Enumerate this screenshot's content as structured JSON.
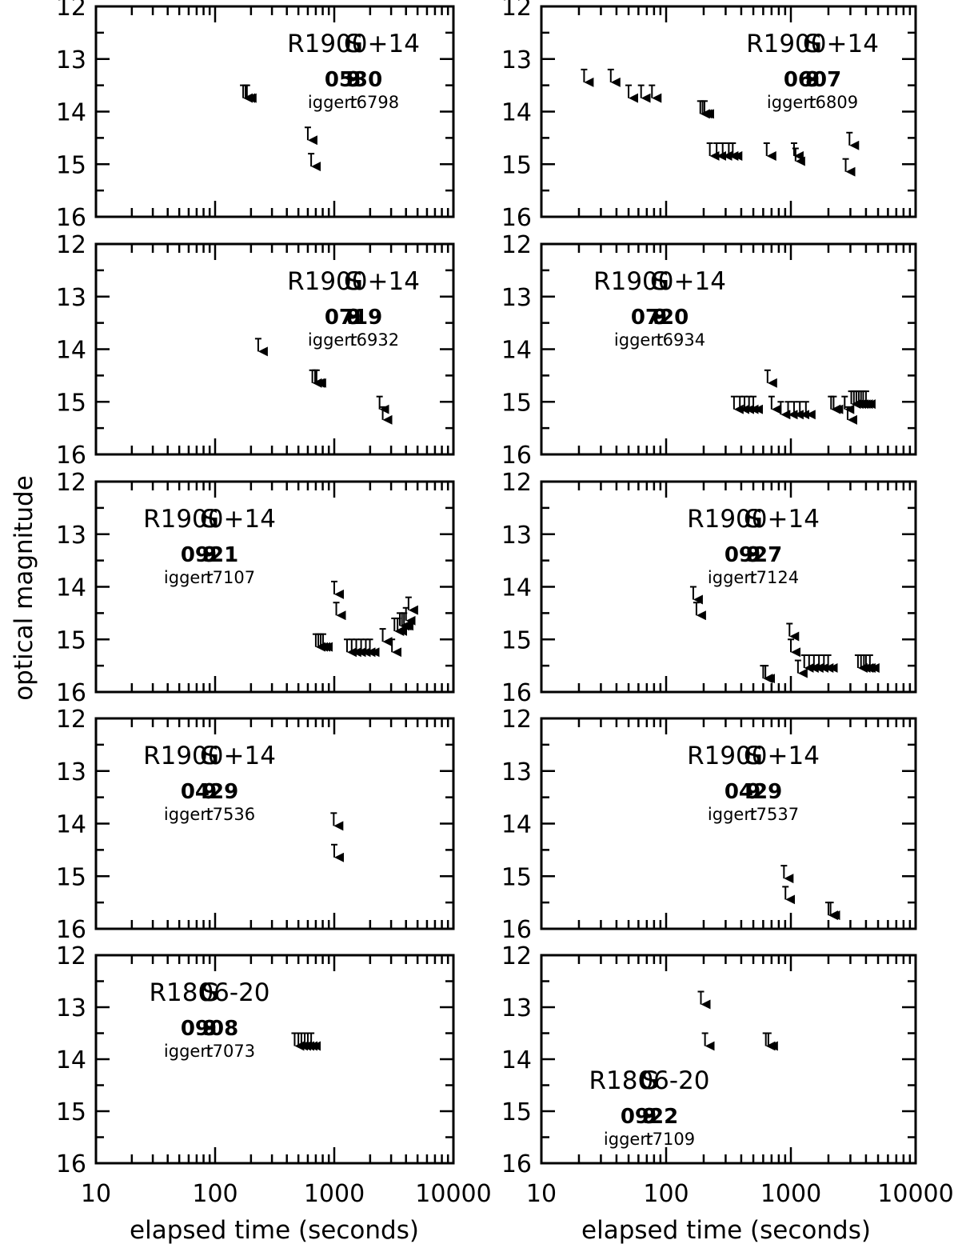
{
  "chart_data": {
    "type": "scatter",
    "marker": "upper-limit-arrow",
    "ylabel": "optical magnitude",
    "xlabel": "elapsed time (seconds)",
    "x_scale": "log",
    "xlim": [
      10,
      10000
    ],
    "ylim": [
      12,
      16
    ],
    "y_inverted": true,
    "x_tick_labels": [
      "10",
      "100",
      "1000",
      "10000"
    ],
    "y_tick_labels": [
      "12",
      "13",
      "14",
      "15",
      "16"
    ],
    "panels": [
      {
        "source": "SGR1900+14",
        "burst": "980530",
        "trigger": "trigger 6798",
        "limits": [
          [
            172,
            13.5
          ],
          [
            180,
            13.5
          ],
          [
            185,
            13.5
          ],
          [
            600,
            14.3
          ],
          [
            640,
            14.8
          ]
        ]
      },
      {
        "source": "SGR1900+14",
        "burst": "980607",
        "trigger": "trigger 6809",
        "limits": [
          [
            22,
            13.2
          ],
          [
            36,
            13.2
          ],
          [
            50,
            13.5
          ],
          [
            63,
            13.5
          ],
          [
            77,
            13.5
          ],
          [
            188,
            13.8
          ],
          [
            196,
            13.8
          ],
          [
            203,
            13.8
          ],
          [
            224,
            14.6
          ],
          [
            254,
            14.6
          ],
          [
            284,
            14.6
          ],
          [
            318,
            14.6
          ],
          [
            342,
            14.6
          ],
          [
            640,
            14.6
          ],
          [
            1060,
            14.6
          ],
          [
            1090,
            14.7
          ],
          [
            2750,
            14.9
          ],
          [
            2950,
            14.4
          ]
        ]
      },
      {
        "source": "SGR1900+14",
        "burst": "980719",
        "trigger": "trigger 6932",
        "limits": [
          [
            230,
            13.8
          ],
          [
            655,
            14.4
          ],
          [
            690,
            14.4
          ],
          [
            710,
            14.4
          ],
          [
            2400,
            14.9
          ],
          [
            2550,
            15.1
          ]
        ]
      },
      {
        "source": "SGR1900+14",
        "burst": "980720",
        "trigger": "trigger 6934",
        "limits": [
          [
            350,
            14.9
          ],
          [
            390,
            14.9
          ],
          [
            425,
            14.9
          ],
          [
            462,
            14.9
          ],
          [
            500,
            14.9
          ],
          [
            650,
            14.4
          ],
          [
            700,
            14.9
          ],
          [
            830,
            15.0
          ],
          [
            950,
            15.0
          ],
          [
            1060,
            15.0
          ],
          [
            1180,
            15.0
          ],
          [
            1320,
            15.0
          ],
          [
            2100,
            14.9
          ],
          [
            2200,
            14.9
          ],
          [
            2700,
            14.9
          ],
          [
            2850,
            15.1
          ],
          [
            3050,
            14.8
          ],
          [
            3200,
            14.8
          ],
          [
            3350,
            14.8
          ],
          [
            3500,
            14.8
          ],
          [
            3650,
            14.8
          ],
          [
            3800,
            14.8
          ],
          [
            4000,
            14.8
          ]
        ]
      },
      {
        "source": "SGR1900+14",
        "burst": "980921",
        "trigger": "trigger 7107",
        "limits": [
          [
            700,
            14.9
          ],
          [
            735,
            14.9
          ],
          [
            770,
            14.9
          ],
          [
            805,
            14.9
          ],
          [
            1000,
            13.9
          ],
          [
            1040,
            14.3
          ],
          [
            1280,
            15.0
          ],
          [
            1400,
            15.0
          ],
          [
            1530,
            15.0
          ],
          [
            1680,
            15.0
          ],
          [
            1840,
            15.0
          ],
          [
            1990,
            15.0
          ],
          [
            2550,
            14.8
          ],
          [
            3050,
            15.0
          ],
          [
            3200,
            14.6
          ],
          [
            3400,
            14.6
          ],
          [
            3550,
            14.5
          ],
          [
            3700,
            14.5
          ],
          [
            3850,
            14.5
          ],
          [
            4000,
            14.4
          ],
          [
            4200,
            14.2
          ]
        ]
      },
      {
        "source": "SGR1900+14",
        "burst": "980927",
        "trigger": "trigger 7124",
        "limits": [
          [
            165,
            14.0
          ],
          [
            175,
            14.3
          ],
          [
            600,
            15.5
          ],
          [
            625,
            15.5
          ],
          [
            975,
            14.7
          ],
          [
            1000,
            15.0
          ],
          [
            1140,
            15.4
          ],
          [
            1280,
            15.3
          ],
          [
            1400,
            15.3
          ],
          [
            1530,
            15.3
          ],
          [
            1680,
            15.3
          ],
          [
            1840,
            15.3
          ],
          [
            1990,
            15.3
          ],
          [
            3450,
            15.3
          ],
          [
            3650,
            15.3
          ],
          [
            3850,
            15.3
          ],
          [
            4000,
            15.3
          ],
          [
            4300,
            15.3
          ]
        ]
      },
      {
        "source": "SGR1900+14",
        "burst": "990429",
        "trigger": "trigger 7536",
        "limits": [
          [
            990,
            13.8
          ],
          [
            1000,
            14.4
          ]
        ]
      },
      {
        "source": "SGR1900+14",
        "burst": "990429",
        "trigger": "trigger 7537",
        "limits": [
          [
            880,
            14.8
          ],
          [
            905,
            15.2
          ],
          [
            2000,
            15.5
          ],
          [
            2080,
            15.5
          ]
        ]
      },
      {
        "source": "SGR1806-20",
        "burst": "980908",
        "trigger": "trigger 7073",
        "limits": [
          [
            465,
            13.5
          ],
          [
            500,
            13.5
          ],
          [
            530,
            13.5
          ],
          [
            565,
            13.5
          ],
          [
            600,
            13.5
          ],
          [
            640,
            13.5
          ]
        ]
      },
      {
        "source": "SGR1806-20",
        "burst": "980922",
        "trigger": "trigger 7109",
        "limits": [
          [
            190,
            12.7
          ],
          [
            205,
            13.5
          ],
          [
            630,
            13.5
          ],
          [
            660,
            13.5
          ]
        ]
      }
    ]
  }
}
